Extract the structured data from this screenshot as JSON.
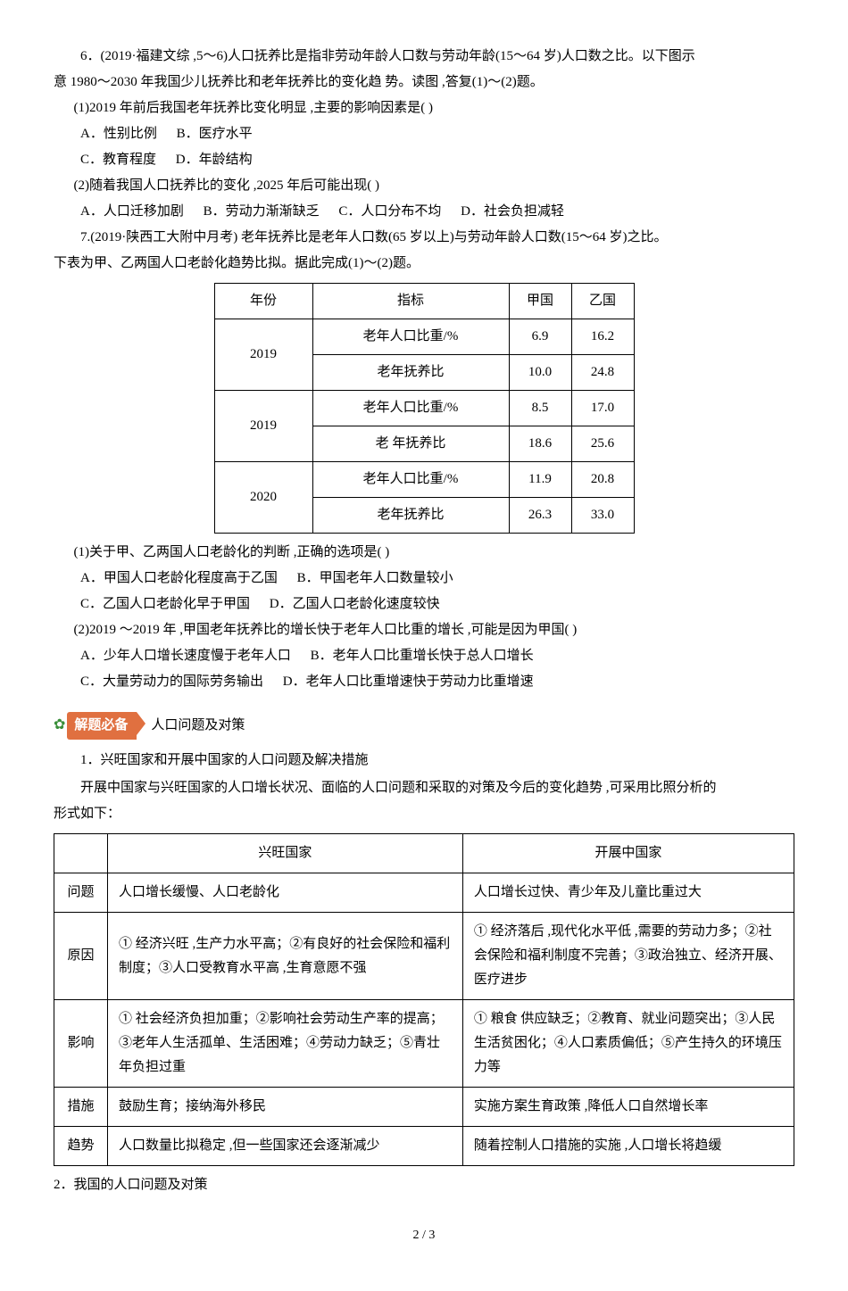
{
  "q6": {
    "stem1": "6．(2019·福建文综 ,5～6)人口抚养比是指非劳动年龄人口数与劳动年龄(15～64 岁)人口数之比。以下图示",
    "stem2": "意 1980～2030 年我国少儿抚养比和老年抚养比的变化趋        势。读图 ,答复(1)～(2)题。",
    "p1": "(1)2019 年前后我国老年抚养比变化明显 ,主要的影响因素是(        )",
    "p1a": "A．性别比例",
    "p1b": "B．医疗水平",
    "p1c": "C．教育程度",
    "p1d": "D．年龄结构",
    "p2": "(2)随着我国人口抚养比的变化 ,2025 年后可能出现(        )",
    "p2a": "A．人口迁移加剧",
    "p2b": "B．劳动力渐渐缺乏",
    "p2c": "C．人口分布不均",
    "p2d": "D．社会负担减轻"
  },
  "q7": {
    "stem1": "7.(2019·陕西工大附中月考)        老年抚养比是老年人口数(65 岁以上)与劳动年龄人口数(15～64 岁)之比。",
    "stem2": "下表为甲、乙两国人口老龄化趋势比拟。据此完成(1)～(2)题。",
    "table": {
      "headers": [
        "年份",
        "指标",
        "甲国",
        "乙国"
      ],
      "rows": [
        {
          "year": "2019",
          "ind": "老年人口比重/%",
          "a": "6.9",
          "b": "16.2"
        },
        {
          "year": null,
          "ind": "老年抚养比",
          "a": "10.0",
          "b": "24.8"
        },
        {
          "year": "2019",
          "ind": "老年人口比重/%",
          "a": "8.5",
          "b": "17.0"
        },
        {
          "year": null,
          "ind": "老        年抚养比",
          "a": "18.6",
          "b": "25.6"
        },
        {
          "year": "2020",
          "ind": "老年人口比重/%",
          "a": "11.9",
          "b": "20.8"
        },
        {
          "year": null,
          "ind": "老年抚养比",
          "a": "26.3",
          "b": "33.0"
        }
      ]
    },
    "p1": "(1)关于甲、乙两国人口老龄化的判断 ,正确的选项是(        )",
    "p1a": "A．甲国人口老龄化程度高于乙国",
    "p1b": "B．甲国老年人口数量较小",
    "p1c": "C．乙国人口老龄化早于甲国",
    "p1d": "D．乙国人口老龄化速度较快",
    "p2": "(2)2019        ～2019 年 ,甲国老年抚养比的增长快于老年人口比重的增长 ,可能是因为甲国(        )",
    "p2a": "A．少年人口增长速度慢于老年人口",
    "p2b": "B．老年人口比重增长快于总人口增长",
    "p2c": "C．大量劳动力的国际劳务输出",
    "p2d": "D．老年人口比重增速快于劳动力比重增速"
  },
  "badge": {
    "label": "解题必备",
    "title": "人口问题及对策"
  },
  "subhead": "1．兴旺国家和开展中国家的人口问题及解决措施",
  "lead1": "开展中国家与兴旺国家的人口增长状况、面临的人口问题和采取的对策及今后的变化趋势 ,可采用比照分析的",
  "lead2": "形式如下：",
  "table2": {
    "h1": "兴旺国家",
    "h2": "开展中国家",
    "rows": [
      {
        "label": "问题",
        "a": "人口增长缓慢、人口老龄化",
        "b": "人口增长过快、青少年及儿童比重过大"
      },
      {
        "label": "原因",
        "a": "① 经济兴旺 ,生产力水平高；②有良好的社会保险和福利制度；③人口受教育水平高 ,生育意愿不强",
        "b": "① 经济落后 ,现代化水平低 ,需要的劳动力多；②社会保险和福利制度不完善；③政治独立、经济开展、医疗进步"
      },
      {
        "label": "影响",
        "a": "① 社会经济负担加重；②影响社会劳动生产率的提高；③老年人生活孤单、生活困难；④劳动力缺乏；⑤青壮年负担过重",
        "b": "① 粮食        供应缺乏；②教育、就业问题突出；③人民生活贫困化；④人口素质偏低；⑤产生持久的环境压力等"
      },
      {
        "label": "措施",
        "a": "鼓励生育；接纳海外移民",
        "b": "实施方案生育政策 ,降低人口自然增长率"
      },
      {
        "label": "趋势",
        "a": "人口数量比拟稳定 ,但一些国家还会逐渐减少",
        "b": "随着控制人口措施的实施 ,人口增长将趋缓"
      }
    ]
  },
  "sub2": "2．我国的人口问题及对策",
  "page": "2 / 3"
}
